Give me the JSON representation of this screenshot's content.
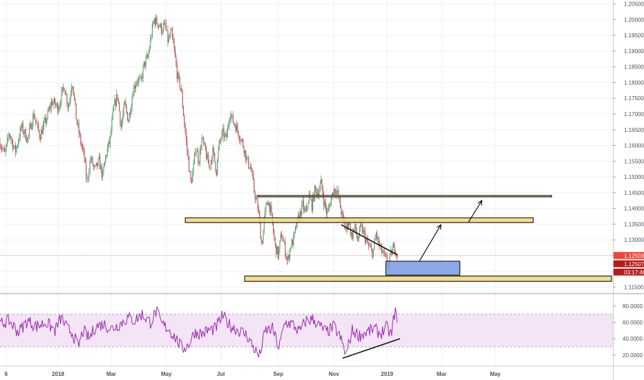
{
  "chart_data": [
    {
      "type": "candlestick",
      "title": "",
      "price_range": [
        1.114,
        1.2058
      ],
      "x_range": [
        0,
        1000
      ],
      "y_ticks": [
        "1.20500",
        "1.20000",
        "1.19500",
        "1.19000",
        "1.18500",
        "1.18000",
        "1.17500",
        "1.17000",
        "1.16500",
        "1.16000",
        "1.15500",
        "1.15000",
        "1.14500",
        "1.14000",
        "1.13500",
        "1.13000",
        "1.12500",
        "1.12000",
        "1.11500"
      ],
      "x_ticks": [
        {
          "label": "6",
          "x": 10
        },
        {
          "label": "2018",
          "x": 95
        },
        {
          "label": "Mar",
          "x": 182
        },
        {
          "label": "May",
          "x": 272
        },
        {
          "label": "Jul",
          "x": 361
        },
        {
          "label": "Sep",
          "x": 455
        },
        {
          "label": "Nov",
          "x": 546
        },
        {
          "label": "2019",
          "x": 633
        },
        {
          "label": "Mar",
          "x": 722
        },
        {
          "label": "May",
          "x": 810
        }
      ],
      "anchors": [
        [
          0,
          1.161
        ],
        [
          8,
          1.157
        ],
        [
          15,
          1.164
        ],
        [
          25,
          1.158
        ],
        [
          35,
          1.166
        ],
        [
          45,
          1.162
        ],
        [
          55,
          1.17
        ],
        [
          65,
          1.163
        ],
        [
          75,
          1.168
        ],
        [
          85,
          1.174
        ],
        [
          95,
          1.172
        ],
        [
          105,
          1.179
        ],
        [
          112,
          1.172
        ],
        [
          118,
          1.181
        ],
        [
          125,
          1.168
        ],
        [
          132,
          1.161
        ],
        [
          138,
          1.156
        ],
        [
          142,
          1.148
        ],
        [
          148,
          1.156
        ],
        [
          155,
          1.152
        ],
        [
          162,
          1.155
        ],
        [
          168,
          1.15
        ],
        [
          172,
          1.156
        ],
        [
          180,
          1.162
        ],
        [
          186,
          1.172
        ],
        [
          192,
          1.176
        ],
        [
          198,
          1.166
        ],
        [
          204,
          1.173
        ],
        [
          210,
          1.168
        ],
        [
          218,
          1.178
        ],
        [
          224,
          1.181
        ],
        [
          230,
          1.18
        ],
        [
          236,
          1.186
        ],
        [
          242,
          1.188
        ],
        [
          248,
          1.196
        ],
        [
          252,
          1.2
        ],
        [
          258,
          1.199
        ],
        [
          264,
          1.197
        ],
        [
          270,
          1.198
        ],
        [
          275,
          1.193
        ],
        [
          280,
          1.196
        ],
        [
          285,
          1.19
        ],
        [
          290,
          1.182
        ],
        [
          296,
          1.178
        ],
        [
          300,
          1.17
        ],
        [
          304,
          1.162
        ],
        [
          308,
          1.155
        ],
        [
          312,
          1.148
        ],
        [
          316,
          1.152
        ],
        [
          320,
          1.16
        ],
        [
          325,
          1.155
        ],
        [
          330,
          1.162
        ],
        [
          336,
          1.158
        ],
        [
          342,
          1.153
        ],
        [
          348,
          1.158
        ],
        [
          354,
          1.152
        ],
        [
          358,
          1.16
        ],
        [
          364,
          1.164
        ],
        [
          370,
          1.162
        ],
        [
          376,
          1.171
        ],
        [
          380,
          1.168
        ],
        [
          386,
          1.166
        ],
        [
          392,
          1.163
        ],
        [
          398,
          1.16
        ],
        [
          404,
          1.155
        ],
        [
          410,
          1.153
        ],
        [
          416,
          1.145
        ],
        [
          422,
          1.14
        ],
        [
          428,
          1.128
        ],
        [
          432,
          1.136
        ],
        [
          437,
          1.143
        ],
        [
          442,
          1.14
        ],
        [
          446,
          1.134
        ],
        [
          450,
          1.128
        ],
        [
          455,
          1.125
        ],
        [
          460,
          1.132
        ],
        [
          465,
          1.128
        ],
        [
          470,
          1.123
        ],
        [
          475,
          1.128
        ],
        [
          480,
          1.13
        ],
        [
          485,
          1.135
        ],
        [
          490,
          1.138
        ],
        [
          495,
          1.141
        ],
        [
          500,
          1.138
        ],
        [
          505,
          1.144
        ],
        [
          510,
          1.141
        ],
        [
          515,
          1.146
        ],
        [
          520,
          1.145
        ],
        [
          525,
          1.148
        ],
        [
          530,
          1.142
        ],
        [
          535,
          1.138
        ],
        [
          540,
          1.142
        ],
        [
          545,
          1.146
        ],
        [
          550,
          1.146
        ],
        [
          555,
          1.142
        ],
        [
          560,
          1.137
        ],
        [
          565,
          1.133
        ],
        [
          570,
          1.136
        ],
        [
          575,
          1.131
        ],
        [
          580,
          1.134
        ],
        [
          585,
          1.13
        ],
        [
          590,
          1.134
        ],
        [
          595,
          1.132
        ],
        [
          600,
          1.129
        ],
        [
          605,
          1.127
        ],
        [
          610,
          1.126
        ],
        [
          615,
          1.132
        ],
        [
          620,
          1.128
        ],
        [
          625,
          1.126
        ],
        [
          630,
          1.124
        ],
        [
          635,
          1.122
        ],
        [
          640,
          1.126
        ],
        [
          645,
          1.128
        ],
        [
          650,
          1.125
        ]
      ],
      "current_price": "1.12503",
      "price_tags": [
        {
          "label": "1.12503",
          "color": "#f44336"
        },
        {
          "label": "1.12507",
          "color": "#b71c1c"
        },
        {
          "label": "03:17:48",
          "color": "#b71c1c"
        }
      ],
      "annotations": [
        {
          "type": "zone",
          "x1": 422,
          "x2": 902,
          "y1": 1.1441,
          "y2": 1.1437,
          "color": "#f1d57d"
        },
        {
          "type": "zone",
          "x1": 303,
          "x2": 872,
          "y1": 1.137,
          "y2": 1.1355,
          "color": "#f1d57d"
        },
        {
          "type": "zone",
          "x1": 400,
          "x2": 1000,
          "y1": 1.1185,
          "y2": 1.1168,
          "color": "#f1d57d"
        },
        {
          "type": "zone",
          "x1": 631,
          "x2": 752,
          "y1": 1.1232,
          "y2": 1.1188,
          "color": "#7fa0e6"
        }
      ]
    },
    {
      "type": "line",
      "title": "",
      "y_range": [
        8,
        91
      ],
      "y_ticks": [
        "80.0000",
        "60.0000",
        "40.0000",
        "20.0000"
      ],
      "bands": [
        70,
        30
      ],
      "anchors": [
        [
          0,
          58
        ],
        [
          15,
          62
        ],
        [
          30,
          48
        ],
        [
          45,
          62
        ],
        [
          60,
          55
        ],
        [
          75,
          60
        ],
        [
          90,
          50
        ],
        [
          100,
          66
        ],
        [
          110,
          52
        ],
        [
          118,
          48
        ],
        [
          128,
          30
        ],
        [
          136,
          50
        ],
        [
          146,
          40
        ],
        [
          156,
          55
        ],
        [
          170,
          58
        ],
        [
          182,
          52
        ],
        [
          196,
          58
        ],
        [
          210,
          66
        ],
        [
          220,
          62
        ],
        [
          232,
          70
        ],
        [
          246,
          60
        ],
        [
          256,
          74
        ],
        [
          264,
          58
        ],
        [
          276,
          52
        ],
        [
          288,
          40
        ],
        [
          298,
          28
        ],
        [
          308,
          32
        ],
        [
          318,
          48
        ],
        [
          330,
          46
        ],
        [
          340,
          50
        ],
        [
          352,
          52
        ],
        [
          364,
          68
        ],
        [
          376,
          56
        ],
        [
          386,
          52
        ],
        [
          396,
          48
        ],
        [
          404,
          44
        ],
        [
          414,
          30
        ],
        [
          424,
          18
        ],
        [
          434,
          50
        ],
        [
          446,
          52
        ],
        [
          456,
          28
        ],
        [
          466,
          60
        ],
        [
          478,
          58
        ],
        [
          490,
          48
        ],
        [
          500,
          62
        ],
        [
          512,
          64
        ],
        [
          522,
          56
        ],
        [
          534,
          48
        ],
        [
          546,
          55
        ],
        [
          556,
          42
        ],
        [
          566,
          20
        ],
        [
          576,
          50
        ],
        [
          588,
          44
        ],
        [
          600,
          48
        ],
        [
          612,
          52
        ],
        [
          622,
          46
        ],
        [
          632,
          54
        ],
        [
          640,
          44
        ],
        [
          646,
          76
        ],
        [
          650,
          58
        ]
      ],
      "annotations": [
        {
          "type": "trendline",
          "x1": 560,
          "y1": 16,
          "x2": 654,
          "y2": 40
        }
      ]
    }
  ],
  "colors": {
    "candle_up": "#4d9e6a",
    "candle_down": "#b64d4f",
    "rsi_line": "#9c27b0",
    "rsi_band_fill": "#f3e5f5",
    "zone_yellow": "#f1d57d",
    "zone_blue": "#7fa0e6",
    "current_price_line": "#e57373"
  }
}
